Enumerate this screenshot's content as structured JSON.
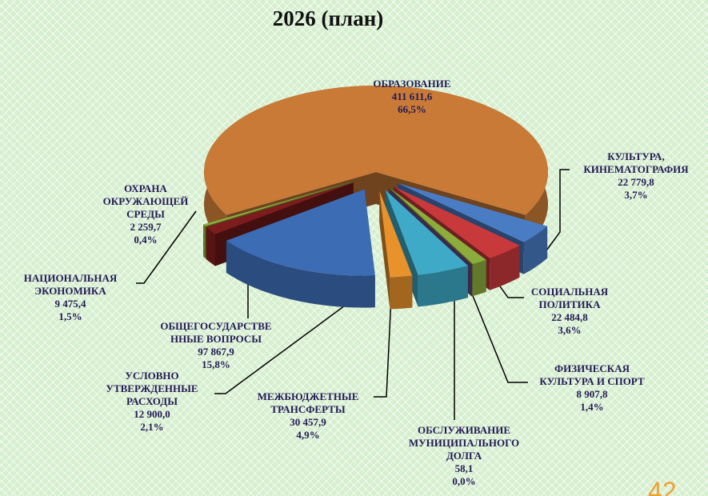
{
  "chart_data": {
    "type": "pie3d",
    "title": "2026 (план)",
    "categories": [
      "ОБРАЗОВАНИЕ",
      "КУЛЬТУРА,\nКИНЕМАТОГРАФИЯ",
      "СОЦИАЛЬНАЯ\nПОЛИТИКА",
      "ФИЗИЧЕСКАЯ\nКУЛЬТУРА И СПОРТ",
      "ОБСЛУЖИВАНИЕ\nМУНИЦИПАЛЬНОГО\nДОЛГА",
      "МЕЖБЮДЖЕТНЫЕ\nТРАНСФЕРТЫ",
      "УСЛОВНО\nУТВЕРЖДЕННЫЕ\nРАСХОДЫ",
      "ОБЩЕГОСУДАРСТВЕ\nННЫЕ ВОПРОСЫ",
      "НАЦИОНАЛЬНАЯ\nЭКОНОМИКА",
      "ОХРАНА\nОКРУЖАЮЩЕЙ\nСРЕДЫ"
    ],
    "values": [
      411611.6,
      22779.8,
      22484.8,
      8907.8,
      58.1,
      30457.9,
      12900.0,
      97867.9,
      9475.4,
      2259.7
    ],
    "value_labels": [
      "411 611,6",
      "22 779,8",
      "22 484,8",
      "8 907,8",
      "58,1",
      "30 457,9",
      "12 900,0",
      "97 867,9",
      "9 475,4",
      "2 259,7"
    ],
    "percents": [
      66.5,
      3.7,
      3.6,
      1.4,
      0.0,
      4.9,
      2.1,
      15.8,
      1.5,
      0.4
    ],
    "percent_labels": [
      "66,5%",
      "3,7%",
      "3,6%",
      "1,4%",
      "0,0%",
      "4,9%",
      "2,1%",
      "15,8%",
      "1,5%",
      "0,4%"
    ],
    "colors": [
      "#c87a36",
      "#4a7cc4",
      "#c8393c",
      "#8cac3c",
      "#6a4a8c",
      "#3eaac8",
      "#e8922c",
      "#3c6cb4",
      "#7c1c1c",
      "#8cac3c"
    ]
  },
  "page_number": "42"
}
